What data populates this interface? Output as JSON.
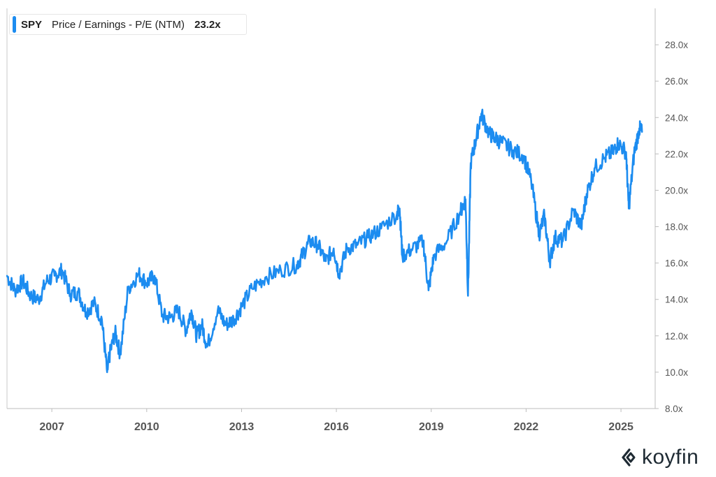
{
  "legend": {
    "ticker": "SPY",
    "metric": "Price / Earnings - P/E (NTM)",
    "value": "23.2x",
    "color": "#1c8cf0"
  },
  "brand": {
    "name": "koyfin",
    "color": "#1e2a33",
    "icon": "koyfin-chevron-logo"
  },
  "chart_data": {
    "type": "line",
    "title": "",
    "xlabel": "",
    "ylabel": "",
    "x_tick_labels": [
      "2007",
      "2010",
      "2013",
      "2016",
      "2019",
      "2022",
      "2025"
    ],
    "y_tick_labels": [
      "8.0x",
      "10.0x",
      "12.0x",
      "14.0x",
      "16.0x",
      "18.0x",
      "20.0x",
      "22.0x",
      "24.0x",
      "26.0x",
      "28.0x"
    ],
    "xlim": [
      "2005-08-01",
      "2026-01-31"
    ],
    "ylim": [
      8,
      30
    ],
    "y_axis_position": "right",
    "grid": false,
    "legend_position": "top-left",
    "series": [
      {
        "name": "SPY",
        "color": "#1c8cf0",
        "x": [
          "2005-08",
          "2005-11",
          "2006-02",
          "2006-05",
          "2006-08",
          "2006-11",
          "2007-02",
          "2007-05",
          "2007-08",
          "2007-11",
          "2008-02",
          "2008-05",
          "2008-08",
          "2008-10",
          "2008-11",
          "2009-01",
          "2009-03",
          "2009-06",
          "2009-10",
          "2010-01",
          "2010-04",
          "2010-07",
          "2010-10",
          "2011-01",
          "2011-04",
          "2011-06",
          "2011-08",
          "2011-10",
          "2011-12",
          "2012-04",
          "2012-07",
          "2012-10",
          "2013-01",
          "2013-05",
          "2013-10",
          "2014-04",
          "2014-10",
          "2014-12",
          "2015-03",
          "2015-06",
          "2015-09",
          "2015-12",
          "2016-02",
          "2016-05",
          "2016-09",
          "2017-01",
          "2017-06",
          "2017-12",
          "2018-01",
          "2018-02",
          "2018-06",
          "2018-10",
          "2018-12",
          "2019-02",
          "2019-07",
          "2019-12",
          "2020-02",
          "2020-03",
          "2020-04",
          "2020-06",
          "2020-08",
          "2020-11",
          "2021-01",
          "2021-04",
          "2021-08",
          "2021-12",
          "2022-03",
          "2022-06",
          "2022-08",
          "2022-10",
          "2022-12",
          "2023-03",
          "2023-07",
          "2023-10",
          "2023-12",
          "2024-03",
          "2024-07",
          "2024-10",
          "2024-12",
          "2025-03",
          "2025-04",
          "2025-06",
          "2025-08",
          "2025-09"
        ],
        "y": [
          15.3,
          14.5,
          15.0,
          14.2,
          14.0,
          15.0,
          15.3,
          15.6,
          14.3,
          14.4,
          13.3,
          13.8,
          12.9,
          10.0,
          11.0,
          12.2,
          11.0,
          14.6,
          15.4,
          14.9,
          15.3,
          13.1,
          13.0,
          13.4,
          12.3,
          13.4,
          12.0,
          12.6,
          11.4,
          13.4,
          12.6,
          12.9,
          13.6,
          14.6,
          15.2,
          15.6,
          15.9,
          16.4,
          17.2,
          17.0,
          16.1,
          16.8,
          15.4,
          16.8,
          17.0,
          17.4,
          17.9,
          18.7,
          19.0,
          16.4,
          16.8,
          17.2,
          14.5,
          16.4,
          17.2,
          18.8,
          19.5,
          14.2,
          21.5,
          22.8,
          24.2,
          23.1,
          22.9,
          22.6,
          22.2,
          21.9,
          20.5,
          17.6,
          18.6,
          16.1,
          17.4,
          17.2,
          18.9,
          18.0,
          19.8,
          21.2,
          21.8,
          22.1,
          22.6,
          22.1,
          19.0,
          22.0,
          23.4,
          23.2
        ]
      }
    ]
  }
}
